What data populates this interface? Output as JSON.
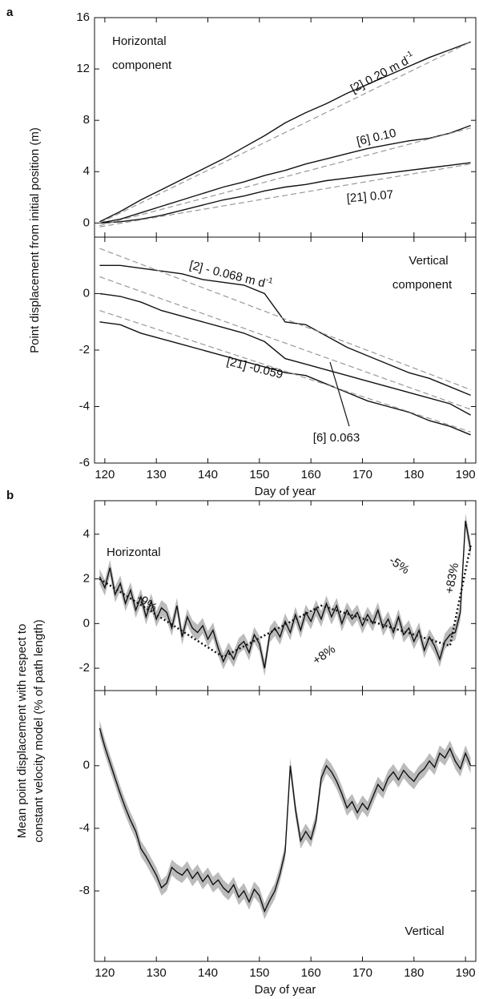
{
  "chart_data": [
    {
      "type": "line",
      "panel_label": "a",
      "ylabel": "Point displacement  from initial position (m)",
      "xlim": [
        118,
        192
      ],
      "ylim": [
        -1.1,
        16
      ],
      "yticks": [
        0,
        4,
        8,
        12,
        16
      ],
      "x": [
        119,
        123,
        127,
        131,
        135,
        139,
        143,
        147,
        151,
        155,
        159,
        163,
        167,
        171,
        175,
        179,
        183,
        187,
        191
      ],
      "annotations": [
        "Horizontal",
        "component",
        {
          "text": "[2]  0.20 m d",
          "sup": "-1"
        },
        "[6]  0.10",
        "[21]  0.07"
      ],
      "series": [
        {
          "color": "#111111",
          "style": "solid",
          "values": [
            0.1,
            0.9,
            1.8,
            2.6,
            3.4,
            4.2,
            5.0,
            5.9,
            6.8,
            7.8,
            8.6,
            9.3,
            10.1,
            10.8,
            11.5,
            12.2,
            12.9,
            13.5,
            14.1
          ]
        },
        {
          "color": "#111111",
          "style": "solid",
          "values": [
            0.0,
            0.3,
            0.8,
            1.3,
            1.8,
            2.3,
            2.8,
            3.2,
            3.7,
            4.1,
            4.6,
            5.0,
            5.4,
            5.8,
            6.1,
            6.4,
            6.6,
            7.0,
            7.6
          ]
        },
        {
          "color": "#111111",
          "style": "solid",
          "values": [
            0.0,
            0.1,
            0.3,
            0.6,
            1.0,
            1.4,
            1.8,
            2.1,
            2.5,
            2.8,
            3.0,
            3.3,
            3.5,
            3.7,
            3.9,
            4.1,
            4.3,
            4.5,
            4.7
          ]
        },
        {
          "color": "#999999",
          "style": "dashed",
          "x": [
            119,
            191
          ],
          "values": [
            0,
            14.1
          ]
        },
        {
          "color": "#999999",
          "style": "dashed",
          "x": [
            119,
            191
          ],
          "values": [
            -0.2,
            7.4
          ]
        },
        {
          "color": "#999999",
          "style": "dashed",
          "x": [
            119,
            191
          ],
          "values": [
            -0.3,
            4.6
          ]
        }
      ]
    },
    {
      "type": "line",
      "xlabel": "Day of year",
      "xlim": [
        118,
        192
      ],
      "ylim": [
        -6,
        2
      ],
      "yticks": [
        -6,
        -4,
        -2,
        0
      ],
      "xticks": [
        120,
        130,
        140,
        150,
        160,
        170,
        180,
        190
      ],
      "x": [
        119,
        123,
        127,
        131,
        135,
        139,
        143,
        147,
        151,
        155,
        159,
        163,
        167,
        171,
        175,
        179,
        183,
        187,
        191
      ],
      "annotations": [
        "Vertical",
        "component",
        {
          "text": "[2]  - 0.068 m d",
          "sup": "-1"
        },
        "[21]  -0.059",
        "[6]  0.063"
      ],
      "series": [
        {
          "color": "#111111",
          "style": "solid",
          "values": [
            1.0,
            1.0,
            0.9,
            0.8,
            0.7,
            0.5,
            0.4,
            0.3,
            0.0,
            -1.0,
            -1.1,
            -1.5,
            -1.9,
            -2.2,
            -2.5,
            -2.8,
            -3.0,
            -3.3,
            -3.6
          ]
        },
        {
          "color": "#111111",
          "style": "solid",
          "values": [
            0.0,
            -0.1,
            -0.3,
            -0.6,
            -0.8,
            -1.0,
            -1.2,
            -1.4,
            -1.7,
            -2.3,
            -2.5,
            -2.7,
            -2.9,
            -3.1,
            -3.3,
            -3.5,
            -3.7,
            -3.9,
            -4.3
          ]
        },
        {
          "color": "#111111",
          "style": "solid",
          "values": [
            -1.0,
            -1.1,
            -1.4,
            -1.6,
            -1.8,
            -2.0,
            -2.2,
            -2.4,
            -2.6,
            -2.8,
            -2.9,
            -3.2,
            -3.5,
            -3.8,
            -4.0,
            -4.2,
            -4.5,
            -4.7,
            -5.0
          ]
        },
        {
          "color": "#999999",
          "style": "dashed",
          "x": [
            119,
            191
          ],
          "values": [
            1.6,
            -3.4
          ]
        },
        {
          "color": "#999999",
          "style": "dashed",
          "x": [
            119,
            191
          ],
          "values": [
            0.6,
            -4.1
          ]
        },
        {
          "color": "#999999",
          "style": "dashed",
          "x": [
            119,
            191
          ],
          "values": [
            -0.6,
            -4.9
          ]
        }
      ]
    },
    {
      "type": "line",
      "panel_label": "b",
      "ylabel": [
        "Mean point displacement with respect to",
        "constant velocity model (% of path length)"
      ],
      "xlim": [
        118,
        192
      ],
      "ylim": [
        -3,
        5.5
      ],
      "yticks": [
        -2,
        0,
        2,
        4
      ],
      "x": [
        119,
        120,
        121,
        122,
        123,
        124,
        125,
        126,
        127,
        128,
        129,
        130,
        131,
        132,
        133,
        134,
        135,
        136,
        137,
        138,
        139,
        140,
        141,
        142,
        143,
        144,
        145,
        146,
        147,
        148,
        149,
        150,
        151,
        152,
        153,
        154,
        155,
        156,
        157,
        158,
        159,
        160,
        161,
        162,
        163,
        164,
        165,
        166,
        167,
        168,
        169,
        170,
        171,
        172,
        173,
        174,
        175,
        176,
        177,
        178,
        179,
        180,
        181,
        182,
        183,
        184,
        185,
        186,
        187,
        188,
        189,
        190,
        191
      ],
      "annotations": [
        "Horizontal",
        "-9%",
        "+8%",
        "-5%",
        "+83%"
      ],
      "series": [
        {
          "color": "#111111",
          "style": "solid",
          "band_color": "#bbbbbb",
          "error": 0.35,
          "values": [
            2.1,
            1.6,
            2.5,
            1.3,
            1.8,
            0.9,
            1.5,
            0.6,
            1.2,
            0.3,
            1.0,
            0.2,
            0.7,
            0.5,
            -0.2,
            0.8,
            -0.6,
            0.3,
            -0.2,
            -0.4,
            -0.1,
            -0.7,
            -0.3,
            -1.1,
            -1.7,
            -1.2,
            -1.6,
            -1.0,
            -0.8,
            -1.3,
            -0.5,
            -0.9,
            -2.0,
            -0.5,
            -0.2,
            -0.6,
            0.1,
            -0.4,
            0.4,
            -0.3,
            0.5,
            0.1,
            0.7,
            0.2,
            0.9,
            0.3,
            0.8,
            0.0,
            0.6,
            0.2,
            0.5,
            -0.1,
            0.4,
            0.0,
            0.6,
            -0.2,
            0.2,
            -0.4,
            0.3,
            -0.5,
            -0.2,
            -0.8,
            -0.3,
            -1.2,
            -0.6,
            -1.0,
            -1.6,
            -0.8,
            -0.5,
            -0.4,
            0.5,
            4.6,
            3.3
          ]
        },
        {
          "color": "#111111",
          "style": "dotted",
          "x": [
            119,
            143,
            162,
            187,
            191
          ],
          "values": [
            2.0,
            -1.5,
            0.8,
            -1.0,
            3.5
          ]
        }
      ]
    },
    {
      "type": "line",
      "xlabel": "Day of year",
      "xlim": [
        118,
        192
      ],
      "ylim": [
        -12.5,
        4.8
      ],
      "yticks": [
        -8,
        -4,
        0
      ],
      "xticks": [
        120,
        130,
        140,
        150,
        160,
        170,
        180,
        190
      ],
      "x": [
        119,
        120,
        121,
        122,
        123,
        124,
        125,
        126,
        127,
        128,
        129,
        130,
        131,
        132,
        133,
        134,
        135,
        136,
        137,
        138,
        139,
        140,
        141,
        142,
        143,
        144,
        145,
        146,
        147,
        148,
        149,
        150,
        151,
        152,
        153,
        154,
        155,
        156,
        157,
        158,
        159,
        160,
        161,
        162,
        163,
        164,
        165,
        166,
        167,
        168,
        169,
        170,
        171,
        172,
        173,
        174,
        175,
        176,
        177,
        178,
        179,
        180,
        181,
        182,
        183,
        184,
        185,
        186,
        187,
        188,
        189,
        190,
        191
      ],
      "annotations": [
        "Vertical"
      ],
      "series": [
        {
          "color": "#111111",
          "style": "solid",
          "band_color": "#bbbbbb",
          "error": 0.5,
          "values": [
            2.4,
            1.2,
            0.2,
            -0.8,
            -1.8,
            -2.7,
            -3.5,
            -4.2,
            -5.3,
            -5.8,
            -6.4,
            -7.0,
            -7.8,
            -7.5,
            -6.5,
            -6.8,
            -7.0,
            -6.6,
            -7.2,
            -6.8,
            -7.4,
            -7.0,
            -7.6,
            -7.3,
            -7.8,
            -8.1,
            -7.6,
            -8.4,
            -8.0,
            -8.7,
            -7.9,
            -8.3,
            -9.3,
            -8.6,
            -8.0,
            -6.9,
            -5.5,
            0.0,
            -2.8,
            -4.8,
            -4.2,
            -4.7,
            -3.5,
            -0.8,
            0.0,
            -0.4,
            -1.0,
            -1.8,
            -2.7,
            -2.3,
            -3.0,
            -2.4,
            -2.8,
            -2.0,
            -1.2,
            -1.6,
            -0.8,
            -0.4,
            -0.9,
            -0.3,
            -0.7,
            -1.0,
            -0.5,
            -0.2,
            0.3,
            -0.1,
            0.8,
            0.5,
            1.1,
            0.3,
            -0.2,
            0.8,
            0.0
          ]
        }
      ]
    }
  ]
}
